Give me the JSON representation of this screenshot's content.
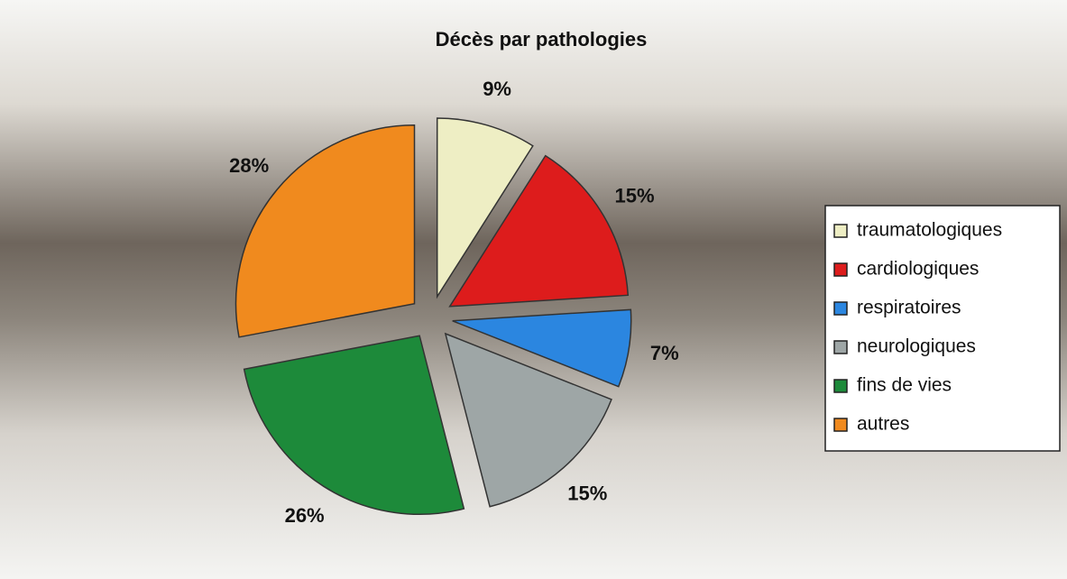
{
  "chart_data": {
    "type": "pie",
    "title": "Décès par pathologies",
    "categories": [
      "traumatologiques",
      "cardiologiques",
      "respiratoires",
      "neurologiques",
      "fins de vies",
      "autres"
    ],
    "values": [
      9,
      15,
      7,
      15,
      26,
      28
    ],
    "value_labels": [
      "9%",
      "15%",
      "7%",
      "15%",
      "26%",
      "28%"
    ],
    "colors": [
      "#eeeec4",
      "#dd1c1c",
      "#2b86e0",
      "#9ea6a6",
      "#1d8a3a",
      "#f08a1e"
    ],
    "legend": "right"
  }
}
